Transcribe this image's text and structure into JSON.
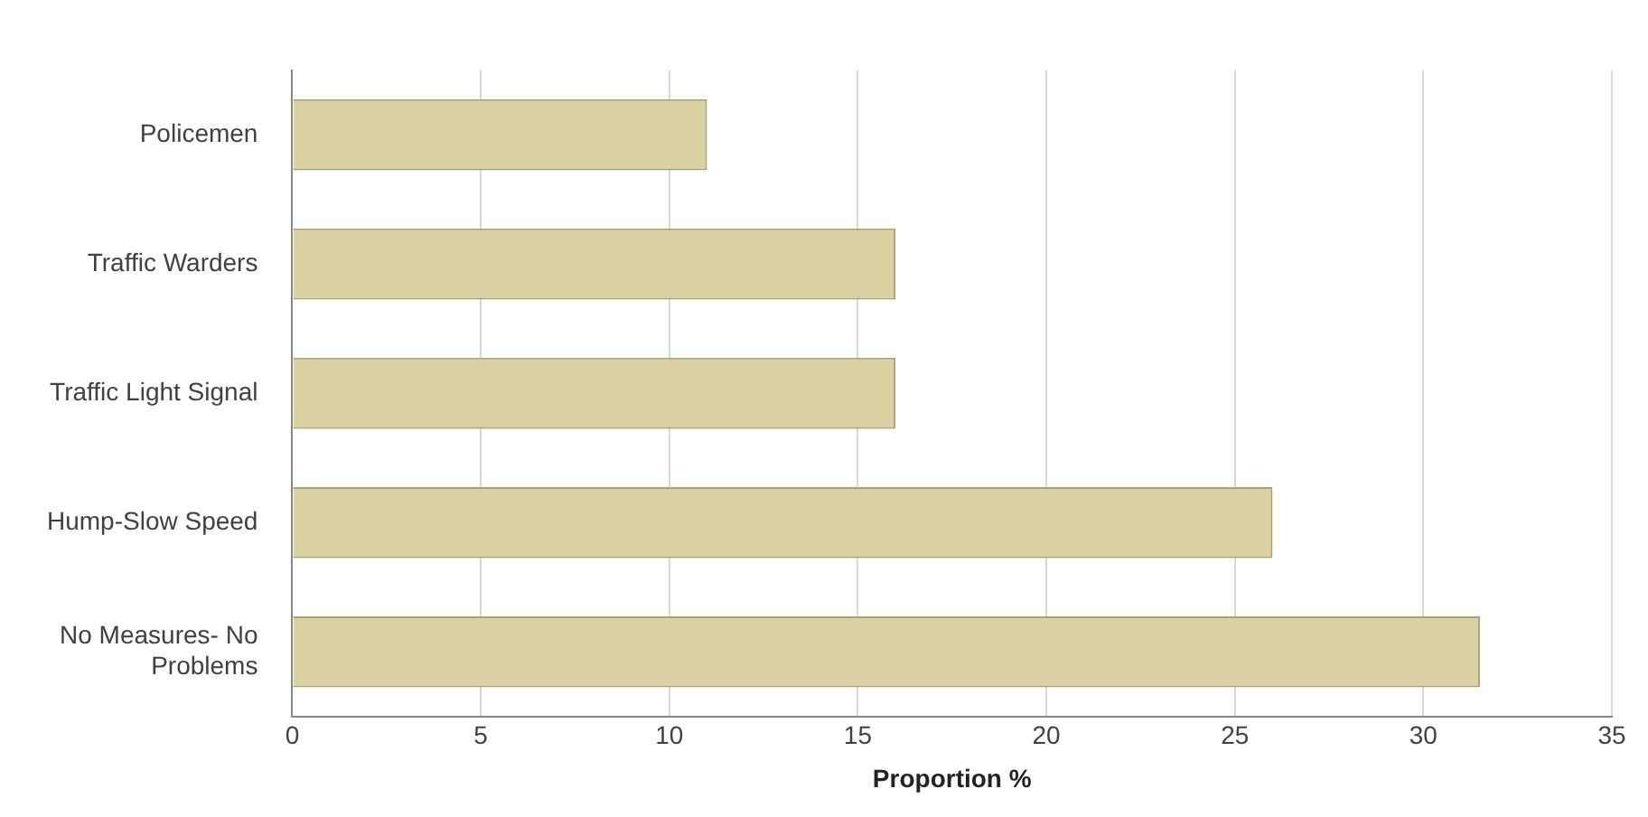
{
  "chart_data": {
    "type": "bar",
    "orientation": "horizontal",
    "xlabel": "Proportion %",
    "categories": [
      "Policemen",
      "Traffic Warders",
      "Traffic Light Signal",
      "Hump-Slow Speed",
      "No Measures- No Problems"
    ],
    "values": [
      11,
      16,
      16,
      26,
      31.5
    ],
    "color": "#d8d3a0",
    "xlim": [
      0,
      35
    ],
    "xticks": [
      0,
      5,
      10,
      15,
      20,
      25,
      30,
      35
    ],
    "grid": "x",
    "legend": false
  }
}
